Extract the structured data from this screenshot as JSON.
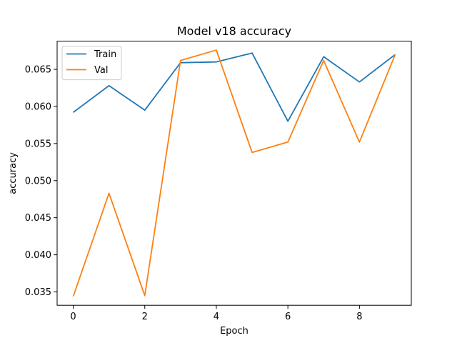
{
  "chart_data": {
    "type": "line",
    "title": "Model v18 accuracy",
    "xlabel": "Epoch",
    "ylabel": "accuracy",
    "x": [
      0,
      1,
      2,
      3,
      4,
      5,
      6,
      7,
      8,
      9
    ],
    "xlim": [
      -0.45,
      9.45
    ],
    "ylim": [
      0.0332,
      0.0688
    ],
    "xticks": [
      0,
      2,
      4,
      6,
      8
    ],
    "xtick_labels": [
      "0",
      "2",
      "4",
      "6",
      "8"
    ],
    "yticks": [
      0.035,
      0.04,
      0.045,
      0.05,
      0.055,
      0.06,
      0.065
    ],
    "ytick_labels": [
      "0.035",
      "0.040",
      "0.045",
      "0.050",
      "0.055",
      "0.060",
      "0.065"
    ],
    "legend_position": "top-left",
    "grid": false,
    "series": [
      {
        "name": "Train",
        "color": "#1f77b4",
        "values": [
          0.0592,
          0.0628,
          0.0595,
          0.0659,
          0.066,
          0.0672,
          0.058,
          0.0667,
          0.0633,
          0.067
        ]
      },
      {
        "name": "Val",
        "color": "#ff7f0e",
        "values": [
          0.0344,
          0.0483,
          0.0345,
          0.0662,
          0.0676,
          0.0538,
          0.0552,
          0.0662,
          0.0552,
          0.067
        ]
      }
    ]
  }
}
